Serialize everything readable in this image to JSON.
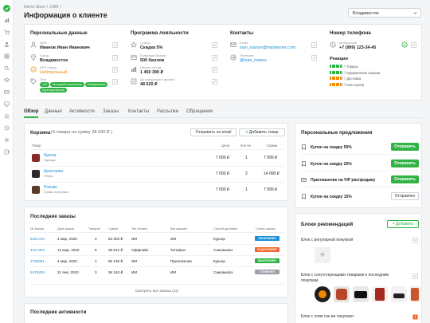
{
  "breadcrumbs": [
    "Demo Store",
    "/",
    "CRM",
    "/"
  ],
  "page_title": "Информация о клиенте",
  "city_select": "Владивосток",
  "personal": {
    "title": "Персональные данные",
    "name_label": "ФИО",
    "name": "Иванов Иван Иванович",
    "city_label": "Город",
    "city": "Владивосток",
    "nps_label": "NPS статус",
    "nps": "Нейтральный",
    "tags_label": "Теги",
    "tags": [
      "VIP",
      "Молодой покупатель",
      "Ежедневный",
      "Корпоративный"
    ]
  },
  "loyalty": {
    "title": "Программа лояльности",
    "status_label": "Статус",
    "status": "Скидка 5%",
    "bonus_label": "Бонусный баланс",
    "bonus": "500 баллов",
    "turnover_label": "Оборот за год",
    "turnover": "1 450 390 ₽",
    "next_label": "До следующего уровня",
    "next": "48 620 ₽"
  },
  "contacts": {
    "title": "Контакты",
    "email_label": "Email",
    "email": "ivan_ivanov@mailserver.com",
    "tg_label": "Телеграм",
    "tg": "@ivan_ivanov"
  },
  "phone": {
    "title": "Номер телефона",
    "mobile_label": "Мобильный",
    "mobile": "+7 (999) 123-34-45",
    "reactions_title": "Реакции",
    "reactions": [
      {
        "label": "Товары",
        "color": "#2fb344"
      },
      {
        "label": "Оформление заказов",
        "color": "#2fb344"
      },
      {
        "label": "Доставка",
        "color": "#f08a00"
      },
      {
        "label": "Колл-центр",
        "color": "#f08a00"
      }
    ]
  },
  "tabs": [
    "Обзор",
    "Данные",
    "Активности",
    "Заказы",
    "Контакты",
    "Рассылки",
    "Обращения"
  ],
  "cart": {
    "title": "Корзина",
    "summary": "(4 товара на сумму 28 000 ₽ )",
    "email_btn": "Отправить на email",
    "add_btn": "Добавить товар",
    "headers": [
      "Товар",
      "Цена",
      "Кол-во",
      "Сумма"
    ],
    "items": [
      {
        "name": "Куртка",
        "cat": "Одежда",
        "price": "7 000 ₽",
        "qty": "1",
        "sum": "7 000 ₽",
        "color": "#8b2a2a"
      },
      {
        "name": "Кроссовки",
        "cat": "Обувь",
        "price": "7 000 ₽",
        "qty": "2",
        "sum": "14 000 ₽",
        "color": "#2b2b2b"
      },
      {
        "name": "Рюкзак",
        "cat": "Сумки и рюкзаки",
        "price": "7 000 ₽",
        "qty": "1",
        "sum": "7 000 ₽",
        "color": "#5a3a2a"
      }
    ]
  },
  "orders": {
    "title": "Последние заказы",
    "headers": [
      "№ Заказа",
      "Дата заказа",
      "Товаров",
      "Сумма",
      "Тип оплаты",
      "Как заказан",
      "Способ доставки",
      "Статус заказа"
    ],
    "rows": [
      {
        "id": "6351763",
        "date": "4 мар, 2020",
        "count": "3",
        "sum": "53 303 ₽",
        "pay": "ИМ",
        "how": "ИМ",
        "delivery": "Курьер",
        "status": "ОФОРМЛЕН",
        "status_color": "#1a8fd6"
      },
      {
        "id": "4327363",
        "date": "14 мар, 2020",
        "count": "5",
        "sum": "39 812 ₽",
        "pay": "Оффлайн",
        "how": "Телефон",
        "delivery": "Самовывоз",
        "status": "В ДОСТАВКЕ",
        "status_color": "#f0662a"
      },
      {
        "id": "2765391",
        "date": "4 мар, 2020",
        "count": "1",
        "sum": "90 136 ₽",
        "pay": "ИМ",
        "how": "Приложение",
        "delivery": "Курьер",
        "status": "ВЫПОЛНЕН",
        "status_color": "#2fb344"
      },
      {
        "id": "5476259",
        "date": "21 янв, 2020",
        "count": "3",
        "sum": "36 163 ₽",
        "pay": "ИМ",
        "how": "ИМ",
        "delivery": "Самовывоз",
        "status": "ОТМЕНЕН",
        "status_color": "#9aa0a6"
      }
    ],
    "all_link": "Смотреть все заказы (11)"
  },
  "activities": {
    "title": "Последние активности"
  },
  "offers": {
    "title": "Персональные предложения",
    "items": [
      {
        "name": "Купон на скидку 50%",
        "btn": "Отправить",
        "sent": false
      },
      {
        "name": "Купон на скидку 25%",
        "btn": "Отправить",
        "sent": false
      },
      {
        "name": "Приглашение на VIP распродажу",
        "btn": "Отправить",
        "sent": false
      },
      {
        "name": "Купон на скидку 15%",
        "btn": "Отправлен",
        "sent": true
      }
    ]
  },
  "recs": {
    "title": "Блоки рекомендаций",
    "add_btn": "Добавить",
    "block1": "Блок с регулярной покупкой",
    "block2": "Блок с сопутствующими товарами к последним покупкам",
    "block3": "Блок с этим так же покупают"
  }
}
